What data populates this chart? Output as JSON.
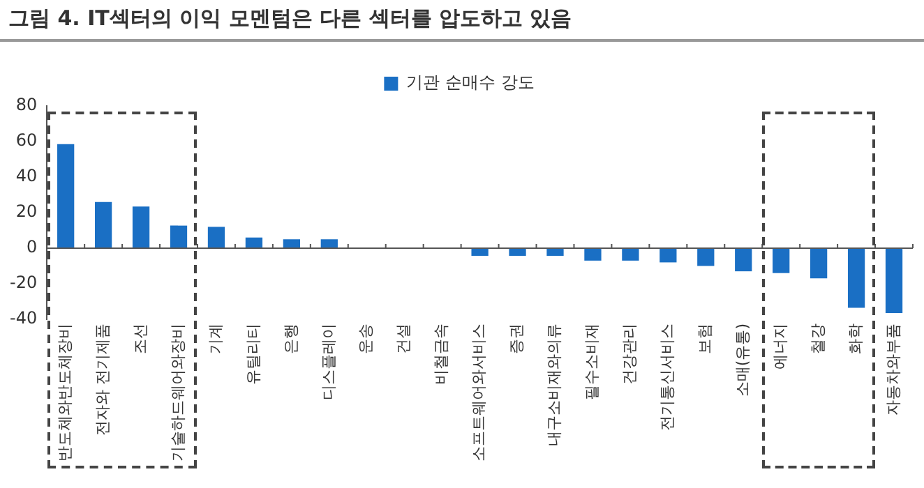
{
  "chart_data": {
    "type": "bar",
    "title": "그림 4. IT섹터의 이익 모멘텀은 다른 섹터를 압도하고 있음",
    "categories": [
      "반도체와반도체장비",
      "전자와 전기제품",
      "조선",
      "기술하드웨어와장비",
      "기계",
      "유틸리티",
      "은행",
      "디스플레이",
      "운송",
      "건설",
      "비철금속",
      "소프트웨어와서비스",
      "증권",
      "내구소비재와의류",
      "필수소비재",
      "건강관리",
      "전기통신서비스",
      "보험",
      "소매(유통)",
      "에너지",
      "철강",
      "화학",
      "자동차와부품"
    ],
    "series": [
      {
        "name": "기관 순매수 강도",
        "color": "#1a6fc4",
        "values": [
          58.5,
          26,
          23.4,
          12.7,
          12,
          6,
          5,
          5,
          0,
          0,
          0,
          -4.3,
          -4.3,
          -4.3,
          -7,
          -7,
          -8,
          -10,
          -13,
          -14,
          -17,
          -33.5,
          -36.5
        ]
      }
    ],
    "ylim": [
      -40,
      80
    ],
    "yticks": [
      -40,
      -20,
      0,
      20,
      40,
      60,
      80
    ],
    "grid": false,
    "legend": "top",
    "ref_lines": [
      {
        "axis": "y",
        "value": 0,
        "color": "#555555"
      }
    ]
  }
}
